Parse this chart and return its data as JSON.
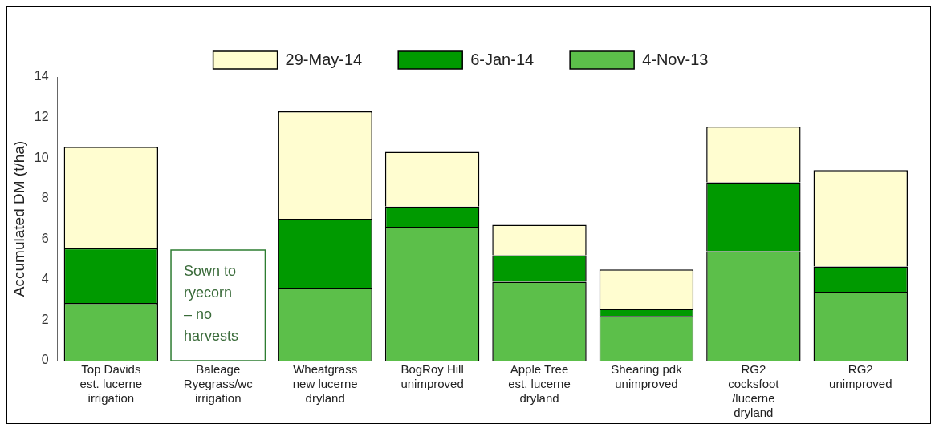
{
  "chart_data": {
    "type": "bar",
    "stacked": true,
    "ylabel": "Accumulated DM (t/ha)",
    "categories": [
      "Top Davids\nest. lucerne\nirrigation",
      "Baleage\nRyegrass/wc\nirrigation",
      "Wheatgrass\nnew lucerne\ndryland",
      "BogRoy Hill\nunimproved",
      "Apple Tree\nest. lucerne\ndryland",
      "Shearing pdk\nunimproved",
      "RG2\ncocksfoot\n/lucerne\ndryland",
      "RG2\nunimproved"
    ],
    "series": [
      {
        "name": "4-Nov-13",
        "color": "#5cbf4a",
        "values": [
          2.85,
          null,
          3.6,
          6.6,
          3.9,
          2.2,
          5.4,
          3.4
        ]
      },
      {
        "name": "6-Jan-14",
        "color": "#009a00",
        "values": [
          2.7,
          null,
          3.4,
          1.0,
          1.3,
          0.35,
          3.4,
          1.25
        ]
      },
      {
        "name": "29-May-14",
        "color": "#fffdd0",
        "values": [
          5.0,
          null,
          5.3,
          2.7,
          1.5,
          1.95,
          2.75,
          4.75
        ]
      }
    ],
    "annotations": [
      "Sown to\nryecorn\n– no\nharvests"
    ],
    "ylim": [
      0,
      14
    ],
    "yticks": [
      0,
      2,
      4,
      6,
      8,
      10,
      12,
      14
    ],
    "grid": false,
    "legend": "top"
  }
}
